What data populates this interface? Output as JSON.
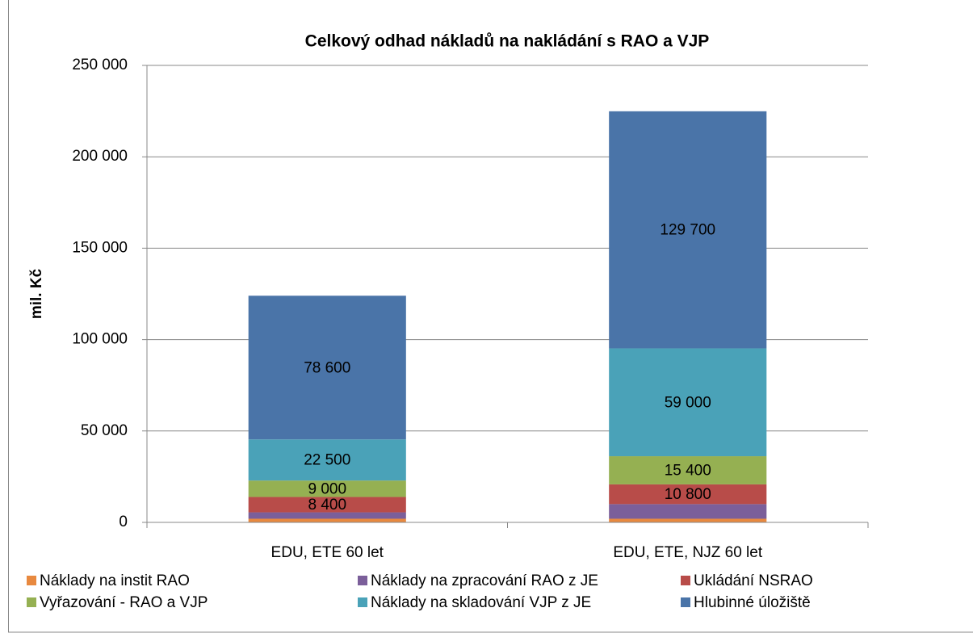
{
  "chart_data": {
    "type": "stacked_bar",
    "title": "Celkový odhad nákladů na nakládání s RAO a VJP",
    "y_label": "mil. Kč",
    "categories": [
      "EDU, ETE 60 let",
      "EDU, ETE, NJZ 60 let"
    ],
    "series": [
      {
        "name": "Náklady na instit RAO",
        "color": "#e8893f",
        "values": [
          2000,
          2000
        ],
        "value_labels": [
          null,
          null
        ]
      },
      {
        "name": "Náklady na zpracování RAO z JE",
        "color": "#7b5f9a",
        "values": [
          3500,
          8000
        ],
        "value_labels": [
          null,
          null
        ]
      },
      {
        "name": "Ukládání NSRAO",
        "color": "#b84c49",
        "values": [
          8400,
          10800
        ],
        "value_labels": [
          "8 400",
          "10 800"
        ]
      },
      {
        "name": "Vyřazování - RAO a VJP",
        "color": "#95b052",
        "values": [
          9000,
          15400
        ],
        "value_labels": [
          "9 000",
          "15 400"
        ]
      },
      {
        "name": "Náklady na skladování VJP z JE",
        "color": "#4aa2b8",
        "values": [
          22500,
          59000
        ],
        "value_labels": [
          "22 500",
          "59 000"
        ]
      },
      {
        "name": "Hlubinné úložiště",
        "color": "#4a74a8",
        "values": [
          78600,
          129700
        ],
        "value_labels": [
          "78 600",
          "129 700"
        ]
      }
    ],
    "ylim": [
      0,
      250000
    ],
    "yticks": [
      0,
      {
        "value": 50000,
        "label": "50 000"
      },
      {
        "value": 100000,
        "label": "100 000"
      },
      {
        "value": 150000,
        "label": "150 000"
      },
      {
        "value": 200000,
        "label": "200 000"
      },
      {
        "value": 250000,
        "label": "250 000"
      }
    ],
    "grid": true,
    "legend": "bottom"
  }
}
